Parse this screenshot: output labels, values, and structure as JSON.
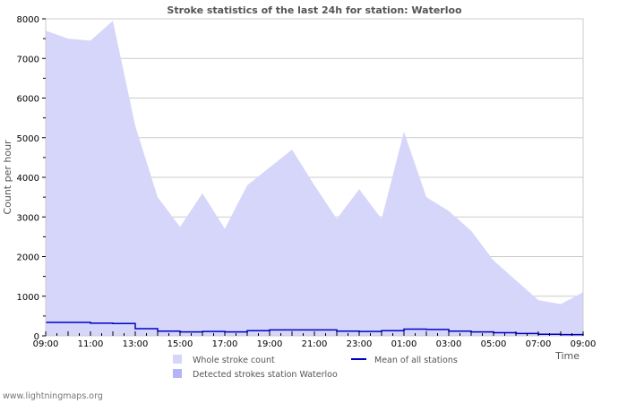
{
  "chart_data": {
    "type": "area",
    "title": "Stroke statistics of the last 24h for station: Waterloo",
    "xlabel": "Time",
    "ylabel": "Count per hour",
    "ylim": [
      0,
      8000
    ],
    "yticks": [
      0,
      1000,
      2000,
      3000,
      4000,
      5000,
      6000,
      7000,
      8000
    ],
    "xtick_labels": [
      "09:00",
      "11:00",
      "13:00",
      "15:00",
      "17:00",
      "19:00",
      "21:00",
      "23:00",
      "01:00",
      "03:00",
      "05:00",
      "07:00",
      "09:00"
    ],
    "grid": true,
    "legend_position": "bottom",
    "x": [
      "09:00",
      "10:00",
      "11:00",
      "12:00",
      "13:00",
      "14:00",
      "15:00",
      "16:00",
      "17:00",
      "18:00",
      "19:00",
      "20:00",
      "21:00",
      "22:00",
      "23:00",
      "00:00",
      "01:00",
      "02:00",
      "03:00",
      "04:00",
      "05:00",
      "06:00",
      "07:00",
      "08:00",
      "09:00"
    ],
    "series": [
      {
        "name": "Whole stroke count",
        "type": "area",
        "color": "#d6d6fa",
        "values": [
          7700,
          7500,
          7450,
          7950,
          5300,
          3500,
          2750,
          3600,
          2700,
          3800,
          4250,
          4700,
          3800,
          2950,
          3700,
          2950,
          5150,
          3500,
          3150,
          2650,
          1900,
          1400,
          900,
          800,
          1100
        ]
      },
      {
        "name": "Detected strokes station Waterloo",
        "type": "area",
        "color": "#b4b4f8",
        "values": [
          0,
          0,
          0,
          0,
          0,
          0,
          0,
          0,
          0,
          0,
          0,
          0,
          0,
          0,
          0,
          0,
          0,
          0,
          0,
          0,
          0,
          0,
          0,
          0,
          0
        ]
      },
      {
        "name": "Mean of all stations",
        "type": "line",
        "color": "#0000cc",
        "values": [
          340,
          340,
          320,
          310,
          180,
          120,
          100,
          110,
          100,
          130,
          150,
          150,
          150,
          120,
          110,
          130,
          170,
          160,
          120,
          100,
          80,
          60,
          40,
          30,
          40
        ]
      }
    ]
  },
  "footer": {
    "credit": "www.lightningmaps.org"
  }
}
